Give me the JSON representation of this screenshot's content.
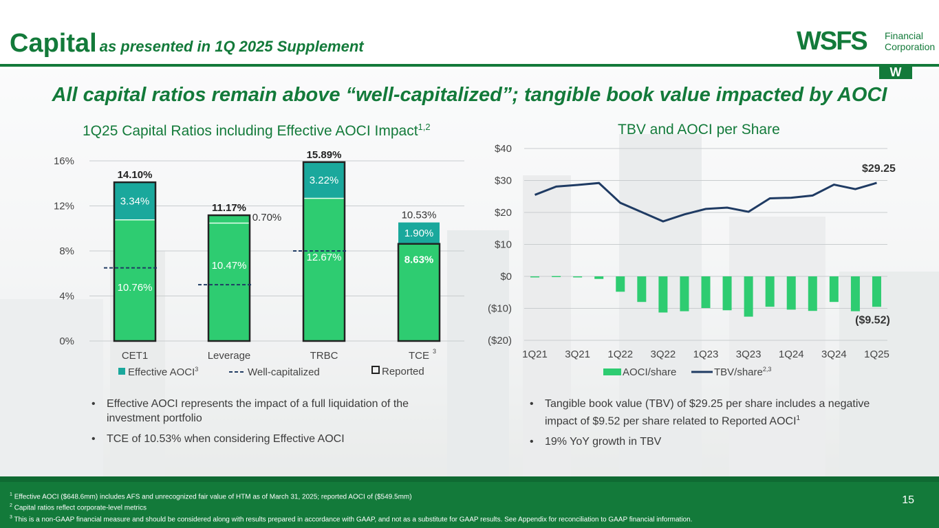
{
  "header": {
    "title": "Capital",
    "subtitle": "as presented in 1Q 2025 Supplement",
    "logo_text": "WSFS",
    "logo_sub_line1": "Financial",
    "logo_sub_line2": "Corporation",
    "logo_mark": "W"
  },
  "headline": "All capital ratios remain above “well-capitalized”; tangible book value impacted by AOCI",
  "colors": {
    "brand_green": "#137a3a",
    "bar_green": "#2ecc71",
    "aoci_teal": "#1aa89c",
    "line_navy": "#1f3b63"
  },
  "left_chart": {
    "title": "1Q25 Capital Ratios including Effective AOCI Impact",
    "title_sup": "1,2",
    "legend_aoci": "Effective AOCI",
    "legend_aoci_sup": "3",
    "legend_wellcap": "Well-capitalized",
    "legend_reported": "Reported",
    "tce_sup": "3"
  },
  "right_chart": {
    "title": "TBV and AOCI per Share",
    "legend_aoci": "AOCI/share",
    "legend_tbv": "TBV/share",
    "legend_tbv_sup": "2,3"
  },
  "chart_data": [
    {
      "type": "bar",
      "title": "1Q25 Capital Ratios including Effective AOCI Impact",
      "categories": [
        "CET1",
        "Leverage",
        "TRBC",
        "TCE"
      ],
      "series": [
        {
          "name": "Reported",
          "values": [
            10.76,
            10.47,
            12.67,
            8.63
          ],
          "labels": [
            "10.76%",
            "10.47%",
            "12.67%",
            "8.63%"
          ]
        },
        {
          "name": "Effective AOCI",
          "values": [
            3.34,
            0.7,
            3.22,
            1.9
          ],
          "labels": [
            "3.34%",
            "0.70%",
            "3.22%",
            "1.90%"
          ]
        },
        {
          "name": "Well-capitalized",
          "values": [
            6.5,
            5.0,
            8.0,
            null
          ]
        }
      ],
      "totals": [
        "14.10%",
        "11.17%",
        "15.89%",
        "10.53%"
      ],
      "yticks": [
        "0%",
        "4%",
        "8%",
        "12%",
        "16%"
      ],
      "ylim": [
        0,
        16
      ]
    },
    {
      "type": "bar+line",
      "title": "TBV and AOCI per Share",
      "categories": [
        "1Q21",
        "2Q21",
        "3Q21",
        "4Q21",
        "1Q22",
        "2Q22",
        "3Q22",
        "4Q22",
        "1Q23",
        "2Q23",
        "3Q23",
        "4Q23",
        "1Q24",
        "2Q24",
        "3Q24",
        "4Q24",
        "1Q25"
      ],
      "x_tick_labels": [
        "1Q21",
        "3Q21",
        "1Q22",
        "3Q22",
        "1Q23",
        "3Q23",
        "1Q24",
        "3Q24",
        "1Q25"
      ],
      "series": [
        {
          "name": "AOCI/share",
          "type": "bar",
          "values": [
            -0.2,
            0.1,
            -0.3,
            -0.8,
            -4.8,
            -8.0,
            -11.3,
            -10.9,
            -9.9,
            -10.6,
            -12.6,
            -9.5,
            -10.4,
            -10.8,
            -8.0,
            -10.9,
            -9.52
          ]
        },
        {
          "name": "TBV/share",
          "type": "line",
          "values": [
            25.5,
            28.1,
            28.6,
            29.2,
            23.0,
            20.1,
            17.2,
            19.4,
            21.1,
            21.5,
            20.2,
            24.4,
            24.6,
            25.3,
            28.7,
            27.3,
            29.25
          ]
        }
      ],
      "labels": {
        "tbv_last": "$29.25",
        "aoci_last": "($9.52)"
      },
      "yticks": [
        "($20)",
        "($10)",
        "$0",
        "$10",
        "$20",
        "$30",
        "$40"
      ],
      "ylim": [
        -20,
        40
      ]
    }
  ],
  "bullets_left": [
    "Effective AOCI represents the impact of a full liquidation of the investment portfolio",
    "TCE of 10.53% when considering Effective AOCI"
  ],
  "bullets_right_1": "Tangible book value (TBV) of $29.25 per share includes a negative impact of $9.52 per share related to Reported AOCI",
  "bullets_right_1_sup": "1",
  "bullets_right_2": "19% YoY growth in TBV",
  "footnotes": [
    {
      "num": "1",
      "text": "Effective AOCI ($648.6mm) includes AFS and unrecognized fair value of HTM as of March 31, 2025; reported AOCI of ($549.5mm)"
    },
    {
      "num": "2",
      "text": "Capital ratios reflect corporate-level metrics"
    },
    {
      "num": "3",
      "text": "This is a non-GAAP financial measure and should be considered along with results prepared in accordance with GAAP, and not as a substitute for GAAP results.  See Appendix for reconciliation to GAAP financial information."
    }
  ],
  "page_number": "15"
}
